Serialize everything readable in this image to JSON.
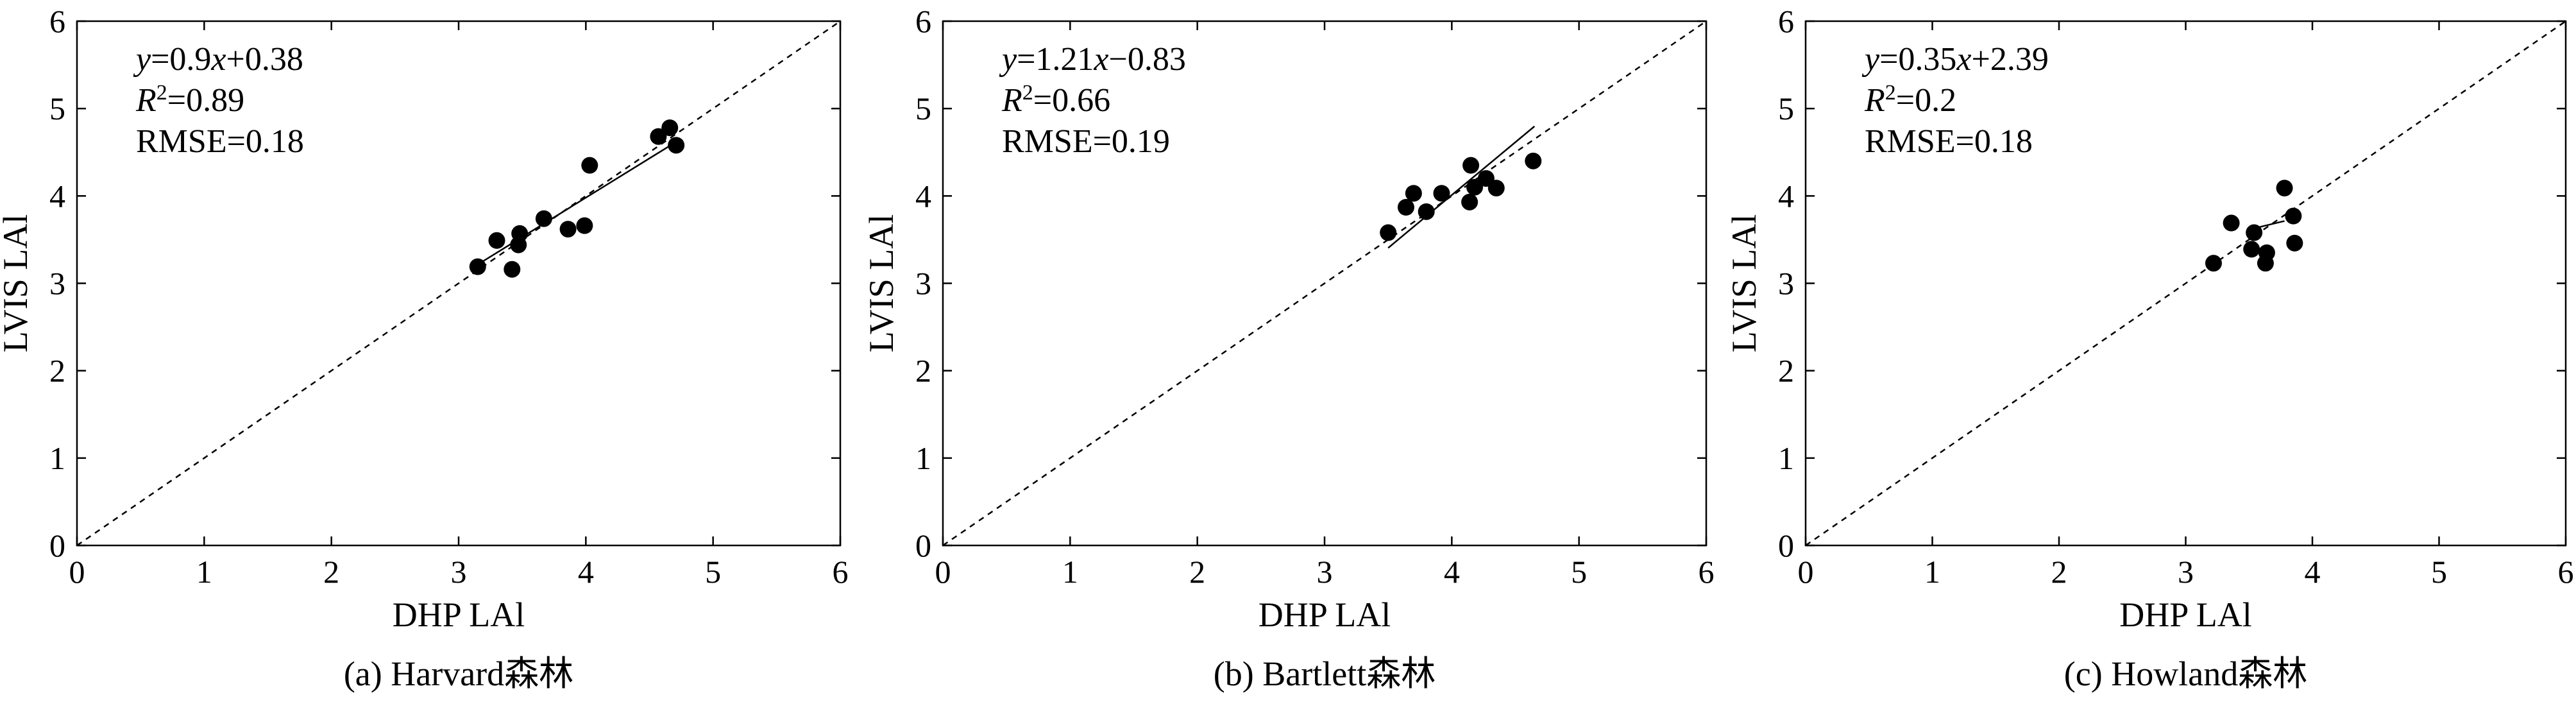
{
  "chart_data": [
    {
      "type": "scatter",
      "caption": "(a) Harvard森林",
      "xlabel": "DHP LAl",
      "ylabel": "LVIS LAl",
      "xlim": [
        0,
        6
      ],
      "ylim": [
        0,
        6
      ],
      "xticks": [
        0,
        1,
        2,
        3,
        4,
        5,
        6
      ],
      "yticks": [
        0,
        1,
        2,
        3,
        4,
        5,
        6
      ],
      "grid": false,
      "reference_line": "1:1",
      "annotation": {
        "equation": "y=0.9x+0.38",
        "r2": "R²=0.89",
        "rmse": "RMSE=0.18"
      },
      "fit": {
        "slope": 0.9,
        "intercept": 0.38,
        "x_range": [
          3.15,
          4.7
        ]
      },
      "points": [
        [
          3.15,
          3.19
        ],
        [
          3.3,
          3.49
        ],
        [
          3.42,
          3.16
        ],
        [
          3.47,
          3.44
        ],
        [
          3.48,
          3.57
        ],
        [
          3.67,
          3.74
        ],
        [
          3.86,
          3.62
        ],
        [
          3.99,
          3.66
        ],
        [
          4.03,
          4.35
        ],
        [
          4.57,
          4.68
        ],
        [
          4.66,
          4.78
        ],
        [
          4.71,
          4.58
        ]
      ]
    },
    {
      "type": "scatter",
      "caption": "(b) Bartlett森林",
      "xlabel": "DHP LAl",
      "ylabel": "LVIS LAl",
      "xlim": [
        0,
        6
      ],
      "ylim": [
        0,
        6
      ],
      "xticks": [
        0,
        1,
        2,
        3,
        4,
        5,
        6
      ],
      "yticks": [
        0,
        1,
        2,
        3,
        4,
        5,
        6
      ],
      "grid": false,
      "reference_line": "1:1",
      "annotation": {
        "equation": "y=1.21x−0.83",
        "r2": "R²=0.66",
        "rmse": "RMSE=0.19"
      },
      "fit": {
        "slope": 1.21,
        "intercept": -0.83,
        "x_range": [
          3.5,
          4.65
        ]
      },
      "points": [
        [
          3.5,
          3.58
        ],
        [
          3.64,
          3.87
        ],
        [
          3.7,
          4.03
        ],
        [
          3.8,
          3.82
        ],
        [
          3.92,
          4.03
        ],
        [
          4.14,
          3.93
        ],
        [
          4.15,
          4.35
        ],
        [
          4.18,
          4.1
        ],
        [
          4.27,
          4.2
        ],
        [
          4.35,
          4.09
        ],
        [
          4.64,
          4.4
        ]
      ]
    },
    {
      "type": "scatter",
      "caption": "(c) Howland森林",
      "xlabel": "DHP LAl",
      "ylabel": "LVIS LAl",
      "xlim": [
        0,
        6
      ],
      "ylim": [
        0,
        6
      ],
      "xticks": [
        0,
        1,
        2,
        3,
        4,
        5,
        6
      ],
      "yticks": [
        0,
        1,
        2,
        3,
        4,
        5,
        6
      ],
      "grid": false,
      "reference_line": "1:1",
      "annotation": {
        "equation": "y=0.35x+2.39",
        "r2": "R²=0.2",
        "rmse": "RMSE=0.18"
      },
      "fit": {
        "slope": 0.35,
        "intercept": 2.39,
        "x_range": [
          3.52,
          3.78
        ]
      },
      "points": [
        [
          3.22,
          3.23
        ],
        [
          3.36,
          3.69
        ],
        [
          3.52,
          3.39
        ],
        [
          3.54,
          3.58
        ],
        [
          3.63,
          3.23
        ],
        [
          3.64,
          3.35
        ],
        [
          3.78,
          4.09
        ],
        [
          3.85,
          3.77
        ],
        [
          3.86,
          3.46
        ]
      ]
    }
  ]
}
